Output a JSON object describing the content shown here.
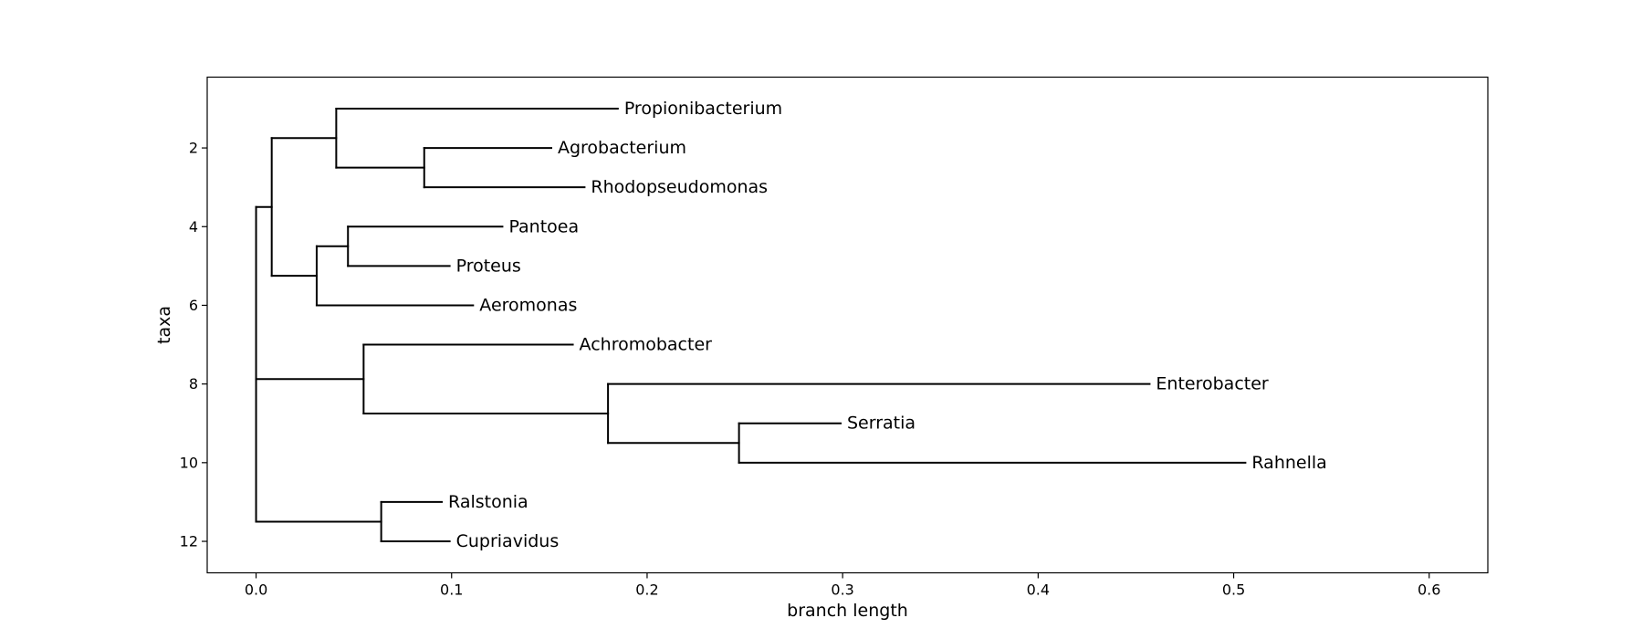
{
  "chart_data": {
    "type": "dendrogram",
    "xlabel": "branch length",
    "ylabel": "taxa",
    "xlim": [
      -0.025,
      0.63
    ],
    "ylim": [
      12.8,
      0.2
    ],
    "xticks": [
      0.0,
      0.1,
      0.2,
      0.3,
      0.4,
      0.5,
      0.6
    ],
    "xtick_labels": [
      "0.0",
      "0.1",
      "0.2",
      "0.3",
      "0.4",
      "0.5",
      "0.6"
    ],
    "yticks": [
      2,
      4,
      6,
      8,
      10,
      12
    ],
    "ytick_labels": [
      "2",
      "4",
      "6",
      "8",
      "10",
      "12"
    ],
    "grid": false,
    "leaves": [
      {
        "name": "Propionibacterium",
        "y": 1,
        "x": 0.185
      },
      {
        "name": "Agrobacterium",
        "y": 2,
        "x": 0.151
      },
      {
        "name": "Rhodopseudomonas",
        "y": 3,
        "x": 0.168
      },
      {
        "name": "Pantoea",
        "y": 4,
        "x": 0.126
      },
      {
        "name": "Proteus",
        "y": 5,
        "x": 0.099
      },
      {
        "name": "Aeromonas",
        "y": 6,
        "x": 0.111
      },
      {
        "name": "Achromobacter",
        "y": 7,
        "x": 0.162
      },
      {
        "name": "Enterobacter",
        "y": 8,
        "x": 0.457
      },
      {
        "name": "Serratia",
        "y": 9,
        "x": 0.299
      },
      {
        "name": "Rahnella",
        "y": 10,
        "x": 0.506
      },
      {
        "name": "Ralstonia",
        "y": 11,
        "x": 0.095
      },
      {
        "name": "Cupriavidus",
        "y": 12,
        "x": 0.099
      }
    ],
    "internal_nodes": [
      {
        "id": "root",
        "x": 0.0,
        "y_low": 3.5,
        "y_high": 11.5
      },
      {
        "id": "n1",
        "x": 0.008,
        "y_low": 1.75,
        "y_high": 5.25
      },
      {
        "id": "n2",
        "x": 0.041,
        "y_low": 1.0,
        "y_high": 2.5
      },
      {
        "id": "n3",
        "x": 0.086,
        "y_low": 2.0,
        "y_high": 3.0
      },
      {
        "id": "n4",
        "x": 0.031,
        "y_low": 4.5,
        "y_high": 6.0
      },
      {
        "id": "n5",
        "x": 0.047,
        "y_low": 4.0,
        "y_high": 5.0
      },
      {
        "id": "n6",
        "x": 0.055,
        "y_low": 7.0,
        "y_high": 8.75
      },
      {
        "id": "n7",
        "x": 0.18,
        "y_low": 8.0,
        "y_high": 9.5
      },
      {
        "id": "n8",
        "x": 0.247,
        "y_low": 9.0,
        "y_high": 10.0
      },
      {
        "id": "n9",
        "x": 0.064,
        "y_low": 11.0,
        "y_high": 12.0
      }
    ],
    "branches": [
      {
        "from": 0.0,
        "to": 0.008,
        "y": 3.5
      },
      {
        "from": 0.008,
        "to": 0.041,
        "y": 1.75
      },
      {
        "from": 0.041,
        "to": 0.185,
        "y": 1.0
      },
      {
        "from": 0.041,
        "to": 0.086,
        "y": 2.5
      },
      {
        "from": 0.086,
        "to": 0.151,
        "y": 2.0
      },
      {
        "from": 0.086,
        "to": 0.168,
        "y": 3.0
      },
      {
        "from": 0.008,
        "to": 0.031,
        "y": 5.25
      },
      {
        "from": 0.031,
        "to": 0.047,
        "y": 4.5
      },
      {
        "from": 0.047,
        "to": 0.126,
        "y": 4.0
      },
      {
        "from": 0.047,
        "to": 0.099,
        "y": 5.0
      },
      {
        "from": 0.031,
        "to": 0.111,
        "y": 6.0
      },
      {
        "from": 0.0,
        "to": 0.055,
        "y": 7.875
      },
      {
        "from": 0.055,
        "to": 0.162,
        "y": 7.0
      },
      {
        "from": 0.055,
        "to": 0.18,
        "y": 8.75
      },
      {
        "from": 0.18,
        "to": 0.457,
        "y": 8.0
      },
      {
        "from": 0.18,
        "to": 0.247,
        "y": 9.5
      },
      {
        "from": 0.247,
        "to": 0.299,
        "y": 9.0
      },
      {
        "from": 0.247,
        "to": 0.506,
        "y": 10.0
      },
      {
        "from": 0.0,
        "to": 0.064,
        "y": 11.5
      },
      {
        "from": 0.064,
        "to": 0.095,
        "y": 11.0
      },
      {
        "from": 0.064,
        "to": 0.099,
        "y": 12.0
      }
    ]
  }
}
